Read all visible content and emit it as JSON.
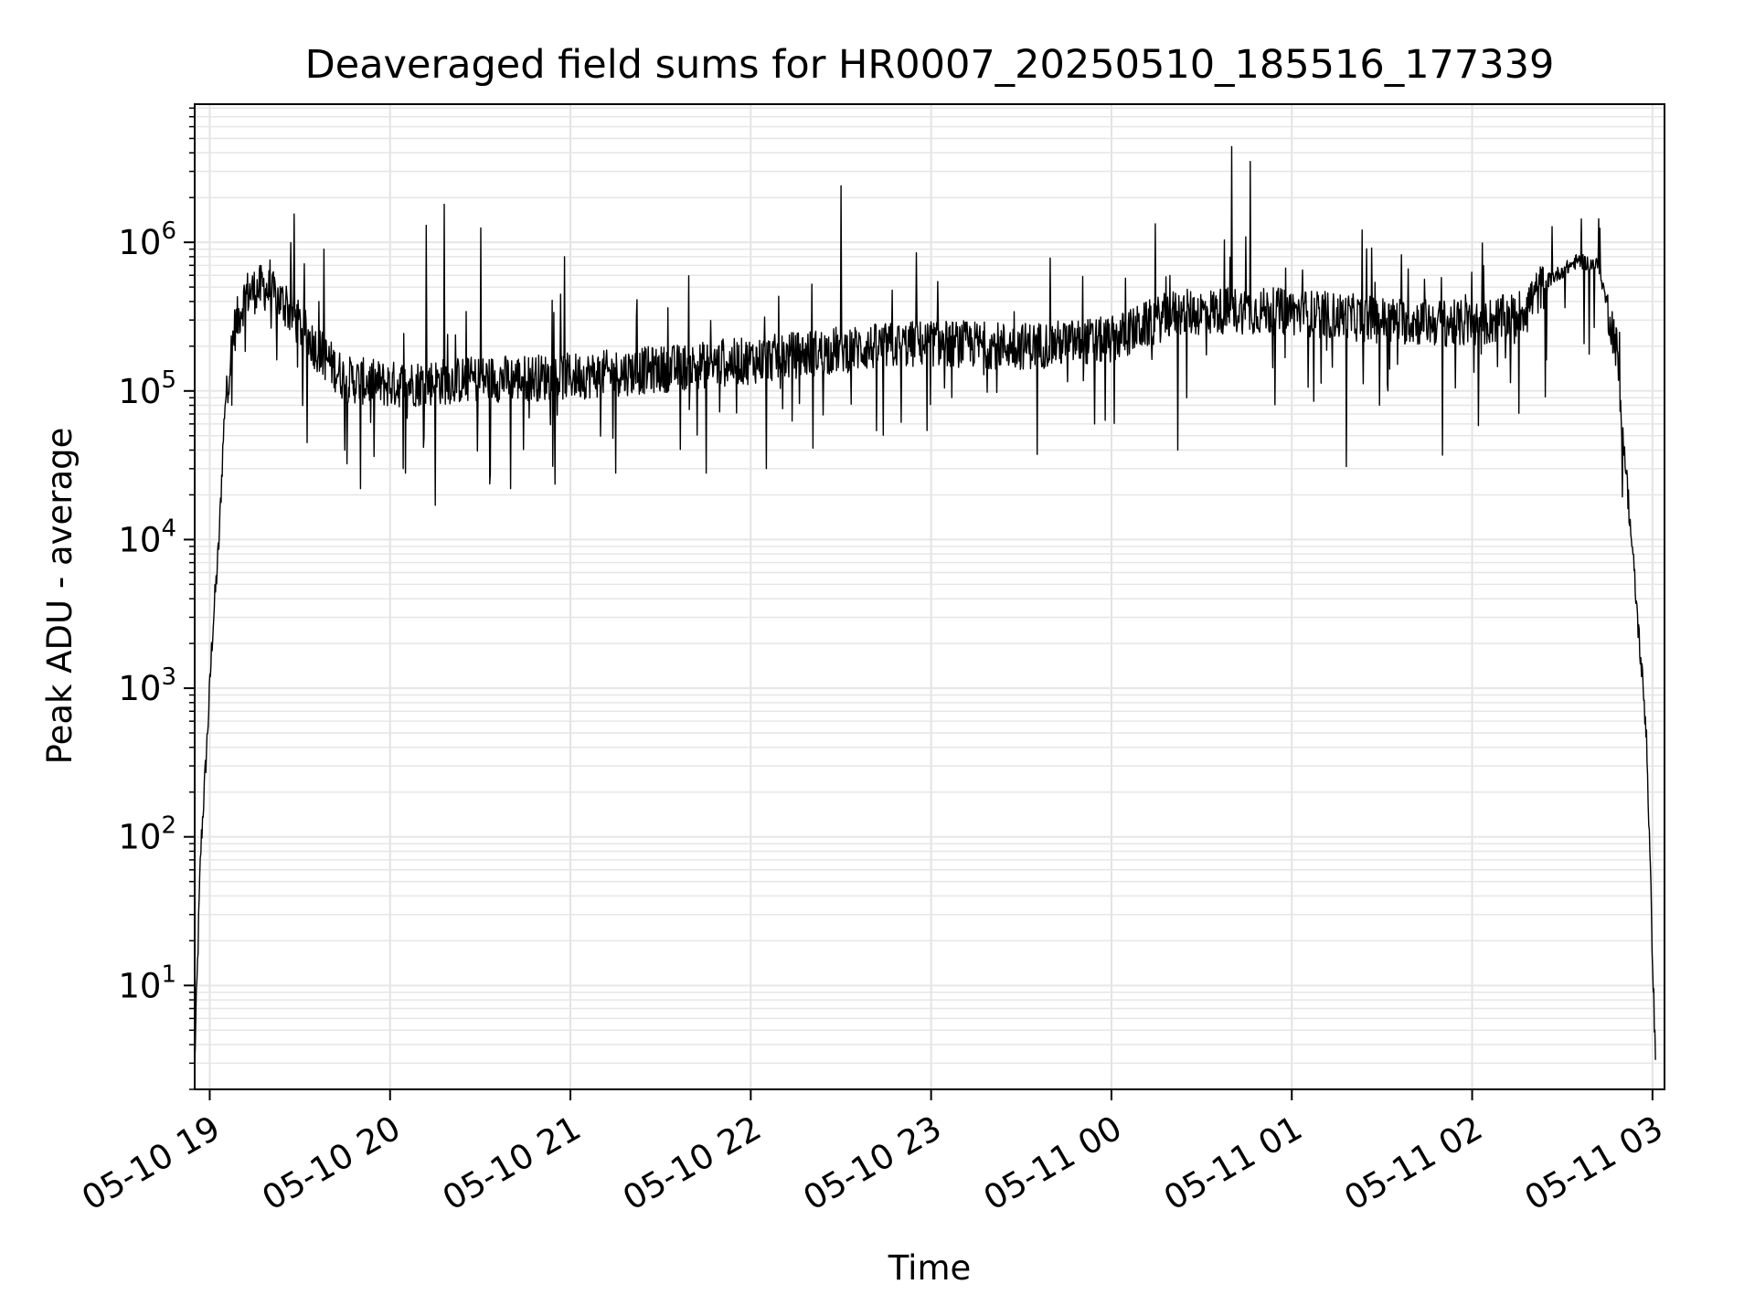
{
  "chart_data": {
    "type": "line",
    "title": "Deaveraged field sums for HR0007_20250510_185516_177339",
    "xlabel": "Time",
    "ylabel": "Peak ADU - average",
    "yscale": "log",
    "ylim": [
      2,
      8500000
    ],
    "xlim": [
      "2025-05-10 18:55",
      "2025-05-11 03:04"
    ],
    "grid": true,
    "series_color": "#000000",
    "x_ticks": [
      {
        "t": "2025-05-10 19:00",
        "label": "05-10 19"
      },
      {
        "t": "2025-05-10 20:00",
        "label": "05-10 20"
      },
      {
        "t": "2025-05-10 21:00",
        "label": "05-10 21"
      },
      {
        "t": "2025-05-10 22:00",
        "label": "05-10 22"
      },
      {
        "t": "2025-05-10 23:00",
        "label": "05-10 23"
      },
      {
        "t": "2025-05-11 00:00",
        "label": "05-11 00"
      },
      {
        "t": "2025-05-11 01:00",
        "label": "05-11 01"
      },
      {
        "t": "2025-05-11 02:00",
        "label": "05-11 02"
      },
      {
        "t": "2025-05-11 03:00",
        "label": "05-11 03"
      }
    ],
    "y_ticks": [
      {
        "value": 10,
        "base": "10",
        "exp": "1"
      },
      {
        "value": 100,
        "base": "10",
        "exp": "2"
      },
      {
        "value": 1000,
        "base": "10",
        "exp": "3"
      },
      {
        "value": 10000,
        "base": "10",
        "exp": "4"
      },
      {
        "value": 100000,
        "base": "10",
        "exp": "5"
      },
      {
        "value": 1000000,
        "base": "10",
        "exp": "6"
      }
    ],
    "series": [
      {
        "baseline": [
          {
            "t": "2025-05-10 18:55",
            "y": 3
          },
          {
            "t": "2025-05-10 18:57",
            "y": 80
          },
          {
            "t": "2025-05-10 18:59",
            "y": 400
          },
          {
            "t": "2025-05-10 19:01",
            "y": 2500
          },
          {
            "t": "2025-05-10 19:03",
            "y": 9000
          },
          {
            "t": "2025-05-10 19:05",
            "y": 80000
          },
          {
            "t": "2025-05-10 19:08",
            "y": 250000
          },
          {
            "t": "2025-05-10 19:12",
            "y": 450000
          },
          {
            "t": "2025-05-10 19:18",
            "y": 500000
          },
          {
            "t": "2025-05-10 19:25",
            "y": 380000
          },
          {
            "t": "2025-05-10 19:35",
            "y": 200000
          },
          {
            "t": "2025-05-10 19:45",
            "y": 120000
          },
          {
            "t": "2025-05-10 20:00",
            "y": 110000
          },
          {
            "t": "2025-05-10 20:30",
            "y": 120000
          },
          {
            "t": "2025-05-10 21:00",
            "y": 125000
          },
          {
            "t": "2025-05-10 21:30",
            "y": 140000
          },
          {
            "t": "2025-05-10 22:00",
            "y": 160000
          },
          {
            "t": "2025-05-10 22:30",
            "y": 190000
          },
          {
            "t": "2025-05-10 23:00",
            "y": 210000
          },
          {
            "t": "2025-05-10 23:30",
            "y": 200000
          },
          {
            "t": "2025-05-11 00:00",
            "y": 220000
          },
          {
            "t": "2025-05-11 00:20",
            "y": 330000
          },
          {
            "t": "2025-05-11 00:40",
            "y": 350000
          },
          {
            "t": "2025-05-11 01:00",
            "y": 340000
          },
          {
            "t": "2025-05-11 01:30",
            "y": 300000
          },
          {
            "t": "2025-05-11 02:00",
            "y": 280000
          },
          {
            "t": "2025-05-11 02:15",
            "y": 320000
          },
          {
            "t": "2025-05-11 02:25",
            "y": 550000
          },
          {
            "t": "2025-05-11 02:35",
            "y": 750000
          },
          {
            "t": "2025-05-11 02:42",
            "y": 700000
          },
          {
            "t": "2025-05-11 02:48",
            "y": 200000
          },
          {
            "t": "2025-05-11 02:53",
            "y": 10000
          },
          {
            "t": "2025-05-11 02:58",
            "y": 500
          },
          {
            "t": "2025-05-11 03:01",
            "y": 3
          }
        ],
        "spikes": [
          {
            "t": "2025-05-10 19:28",
            "y": 1550000
          },
          {
            "t": "2025-05-10 19:38",
            "y": 900000
          },
          {
            "t": "2025-05-10 20:12",
            "y": 1300000
          },
          {
            "t": "2025-05-10 20:18",
            "y": 1800000
          },
          {
            "t": "2025-05-10 20:30",
            "y": 1250000
          },
          {
            "t": "2025-05-10 20:58",
            "y": 800000
          },
          {
            "t": "2025-05-10 22:30",
            "y": 2400000
          },
          {
            "t": "2025-05-10 22:55",
            "y": 850000
          },
          {
            "t": "2025-05-11 00:40",
            "y": 4400000
          },
          {
            "t": "2025-05-11 00:46",
            "y": 3500000
          }
        ],
        "dips": [
          {
            "t": "2025-05-10 19:50",
            "y": 22000
          },
          {
            "t": "2025-05-10 20:05",
            "y": 28000
          },
          {
            "t": "2025-05-10 20:15",
            "y": 17000
          },
          {
            "t": "2025-05-10 20:40",
            "y": 22000
          },
          {
            "t": "2025-05-10 21:15",
            "y": 28000
          },
          {
            "t": "2025-05-10 21:45",
            "y": 28000
          },
          {
            "t": "2025-05-10 22:05",
            "y": 30000
          },
          {
            "t": "2025-05-11 00:22",
            "y": 40000
          },
          {
            "t": "2025-05-11 01:18",
            "y": 31000
          },
          {
            "t": "2025-05-11 01:50",
            "y": 37000
          }
        ]
      }
    ]
  }
}
